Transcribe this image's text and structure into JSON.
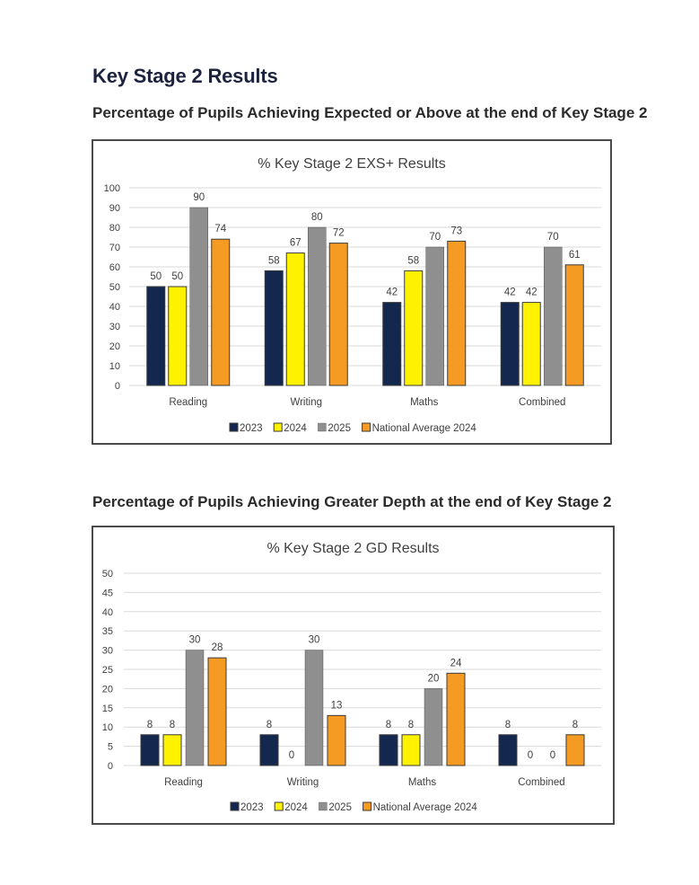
{
  "page": {
    "title": "Key Stage 2 Results",
    "section1_heading": "Percentage of Pupils Achieving Expected or Above at the end of Key Stage 2",
    "section2_heading": "Percentage of Pupils Achieving Greater Depth at the end of Key Stage 2"
  },
  "colors": {
    "2023": "#14284f",
    "2024": "#fff200",
    "2025": "#8f8f8f",
    "National Average 2024": "#f59a23",
    "bar_outline": "#3a3a3a"
  },
  "chart_data": [
    {
      "type": "bar",
      "title": "% Key Stage 2 EXS+ Results",
      "xlabel": "",
      "ylabel": "",
      "categories": [
        "Reading",
        "Writing",
        "Maths",
        "Combined"
      ],
      "series": [
        {
          "name": "2023",
          "values": [
            50,
            58,
            42,
            42
          ]
        },
        {
          "name": "2024",
          "values": [
            50,
            67,
            58,
            42
          ]
        },
        {
          "name": "2025",
          "values": [
            90,
            80,
            70,
            70
          ]
        },
        {
          "name": "National Average 2024",
          "values": [
            74,
            72,
            73,
            61
          ]
        }
      ],
      "ylim": [
        0,
        100
      ],
      "yticks": [
        0,
        10,
        20,
        30,
        40,
        50,
        60,
        70,
        80,
        90,
        100
      ],
      "grid": true,
      "legend": "bottom"
    },
    {
      "type": "bar",
      "title": "% Key Stage 2 GD Results",
      "xlabel": "",
      "ylabel": "",
      "categories": [
        "Reading",
        "Writing",
        "Maths",
        "Combined"
      ],
      "series": [
        {
          "name": "2023",
          "values": [
            8,
            8,
            8,
            8
          ]
        },
        {
          "name": "2024",
          "values": [
            8,
            0,
            8,
            0
          ]
        },
        {
          "name": "2025",
          "values": [
            30,
            30,
            20,
            0
          ]
        },
        {
          "name": "National Average 2024",
          "values": [
            28,
            13,
            24,
            8
          ]
        }
      ],
      "ylim": [
        0,
        50
      ],
      "yticks": [
        0,
        5,
        10,
        15,
        20,
        25,
        30,
        35,
        40,
        45,
        50
      ],
      "grid": true,
      "legend": "bottom"
    }
  ]
}
